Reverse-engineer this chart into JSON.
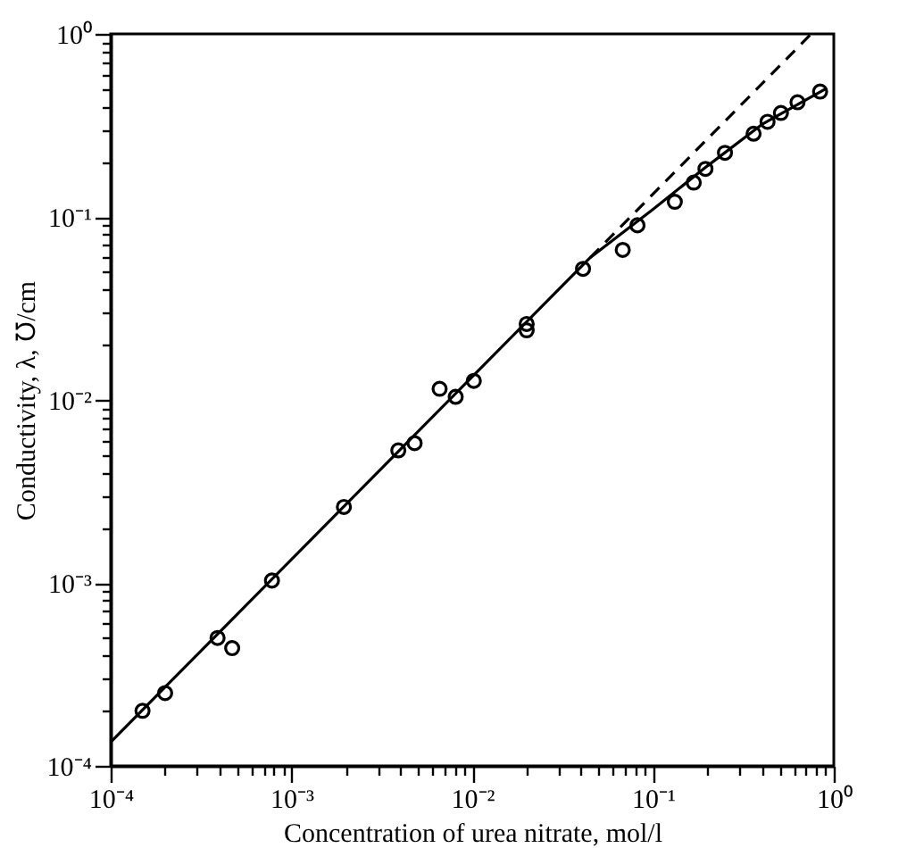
{
  "chart_data": {
    "type": "scatter",
    "xlabel": "Concentration of urea nitrate, mol/l",
    "ylabel": "Conductivity, λ, ℧/cm",
    "log": "xy",
    "grid": false,
    "xlim": [
      0.0001,
      1
    ],
    "ylim": [
      0.0001,
      1
    ],
    "xticks": [
      {
        "value": 0.0001,
        "label": "10⁻⁴"
      },
      {
        "value": 0.0002,
        "label": null
      },
      {
        "value": 0.0003,
        "label": null
      },
      {
        "value": 0.0004,
        "label": null
      },
      {
        "value": 0.0005,
        "label": null
      },
      {
        "value": 0.0006,
        "label": null
      },
      {
        "value": 0.0007,
        "label": null
      },
      {
        "value": 0.0008,
        "label": null
      },
      {
        "value": 0.0009,
        "label": null
      },
      {
        "value": 0.001,
        "label": "10⁻³"
      },
      {
        "value": 0.002,
        "label": null
      },
      {
        "value": 0.003,
        "label": null
      },
      {
        "value": 0.004,
        "label": null
      },
      {
        "value": 0.005,
        "label": null
      },
      {
        "value": 0.006,
        "label": null
      },
      {
        "value": 0.007,
        "label": null
      },
      {
        "value": 0.008,
        "label": null
      },
      {
        "value": 0.009,
        "label": null
      },
      {
        "value": 0.01,
        "label": "10⁻²"
      },
      {
        "value": 0.02,
        "label": null
      },
      {
        "value": 0.03,
        "label": null
      },
      {
        "value": 0.04,
        "label": null
      },
      {
        "value": 0.05,
        "label": null
      },
      {
        "value": 0.06,
        "label": null
      },
      {
        "value": 0.07,
        "label": null
      },
      {
        "value": 0.08,
        "label": null
      },
      {
        "value": 0.09,
        "label": null
      },
      {
        "value": 0.1,
        "label": "10⁻¹"
      },
      {
        "value": 0.2,
        "label": null
      },
      {
        "value": 0.3,
        "label": null
      },
      {
        "value": 0.4,
        "label": null
      },
      {
        "value": 0.5,
        "label": null
      },
      {
        "value": 0.6,
        "label": null
      },
      {
        "value": 0.7,
        "label": null
      },
      {
        "value": 0.8,
        "label": null
      },
      {
        "value": 0.9,
        "label": null
      },
      {
        "value": 1,
        "label": "10⁰"
      }
    ],
    "yticks": [
      {
        "value": 0.0001,
        "label": "10⁻⁴"
      },
      {
        "value": 0.0002,
        "label": null
      },
      {
        "value": 0.0003,
        "label": null
      },
      {
        "value": 0.0004,
        "label": null
      },
      {
        "value": 0.0005,
        "label": null
      },
      {
        "value": 0.0006,
        "label": null
      },
      {
        "value": 0.0007,
        "label": null
      },
      {
        "value": 0.0008,
        "label": null
      },
      {
        "value": 0.0009,
        "label": null
      },
      {
        "value": 0.001,
        "label": "10⁻³"
      },
      {
        "value": 0.002,
        "label": null
      },
      {
        "value": 0.003,
        "label": null
      },
      {
        "value": 0.004,
        "label": null
      },
      {
        "value": 0.005,
        "label": null
      },
      {
        "value": 0.006,
        "label": null
      },
      {
        "value": 0.007,
        "label": null
      },
      {
        "value": 0.008,
        "label": null
      },
      {
        "value": 0.009,
        "label": null
      },
      {
        "value": 0.01,
        "label": "10⁻²"
      },
      {
        "value": 0.02,
        "label": null
      },
      {
        "value": 0.03,
        "label": null
      },
      {
        "value": 0.04,
        "label": null
      },
      {
        "value": 0.05,
        "label": null
      },
      {
        "value": 0.06,
        "label": null
      },
      {
        "value": 0.07,
        "label": null
      },
      {
        "value": 0.08,
        "label": null
      },
      {
        "value": 0.09,
        "label": null
      },
      {
        "value": 0.1,
        "label": "10⁻¹"
      },
      {
        "value": 0.2,
        "label": null
      },
      {
        "value": 0.3,
        "label": null
      },
      {
        "value": 0.4,
        "label": null
      },
      {
        "value": 0.5,
        "label": null
      },
      {
        "value": 0.6,
        "label": null
      },
      {
        "value": 0.7,
        "label": null
      },
      {
        "value": 0.8,
        "label": null
      },
      {
        "value": 0.9,
        "label": null
      },
      {
        "value": 1,
        "label": "10⁰"
      }
    ],
    "series": [
      {
        "marker": "circle",
        "color": "#000000",
        "x": [
          0.00015,
          0.0002,
          0.00039,
          0.00047,
          0.00078,
          0.00195,
          0.0039,
          0.0048,
          0.0066,
          0.0081,
          0.0102,
          0.02,
          0.02,
          0.041,
          0.068,
          0.082,
          0.132,
          0.168,
          0.195,
          0.25,
          0.36,
          0.43,
          0.51,
          0.63,
          0.84
        ],
        "values": [
          0.0002,
          0.00025,
          0.0005,
          0.00044,
          0.00103,
          0.0026,
          0.0053,
          0.0058,
          0.0115,
          0.0104,
          0.0127,
          0.026,
          0.024,
          0.052,
          0.066,
          0.09,
          0.121,
          0.154,
          0.183,
          0.224,
          0.285,
          0.331,
          0.37,
          0.423,
          0.484
        ]
      },
      {
        "type": "line",
        "color": "#000000",
        "line_style": "solid",
        "x": [
          0.0001,
          0.045,
          0.1,
          0.2,
          0.4,
          0.9
        ],
        "values": [
          0.000135,
          0.06,
          0.11,
          0.19,
          0.32,
          0.5
        ]
      },
      {
        "type": "line",
        "color": "#000000",
        "line_style": "dashed",
        "x": [
          0.045,
          0.75
        ],
        "values": [
          0.06,
          1
        ]
      }
    ]
  }
}
